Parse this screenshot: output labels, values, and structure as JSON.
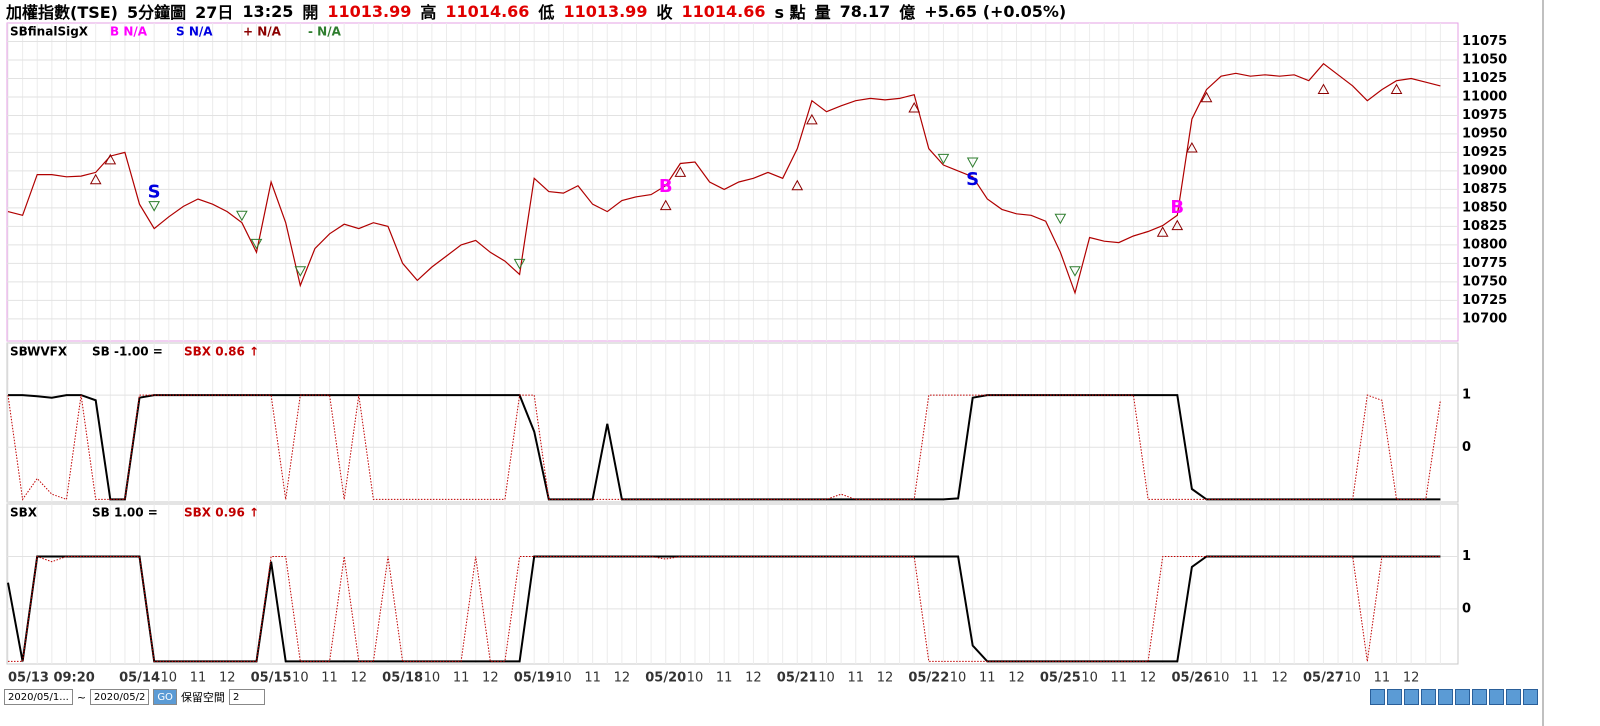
{
  "header": [
    {
      "text": "加權指數(TSE)",
      "color": "#000000"
    },
    {
      "text": "5分鐘圖",
      "color": "#000000"
    },
    {
      "text": "27日",
      "color": "#000000"
    },
    {
      "text": "13:25",
      "color": "#000000"
    },
    {
      "text": "開",
      "color": "#000000"
    },
    {
      "text": "11013.99",
      "color": "#e00000"
    },
    {
      "text": "高",
      "color": "#000000"
    },
    {
      "text": "11014.66",
      "color": "#e00000"
    },
    {
      "text": "低",
      "color": "#000000"
    },
    {
      "text": "11013.99",
      "color": "#e00000"
    },
    {
      "text": "收",
      "color": "#000000"
    },
    {
      "text": "11014.66",
      "color": "#e00000"
    },
    {
      "text": "s 點",
      "color": "#000000"
    },
    {
      "text": "量",
      "color": "#000000"
    },
    {
      "text": "78.17",
      "color": "#000000"
    },
    {
      "text": "億",
      "color": "#000000"
    },
    {
      "text": "+5.65 (+0.05%)",
      "color": "#000000"
    }
  ],
  "toolbar": {
    "from": "2020/05/1...",
    "sep": "~",
    "to": "2020/05/2",
    "space_label": "保留空間",
    "space_value": "2"
  },
  "chart_data": [
    {
      "type": "line",
      "title": "SBfinalSigX",
      "ylim": [
        10670,
        11100
      ],
      "yticks": [
        10700,
        10725,
        10750,
        10775,
        10800,
        10825,
        10850,
        10875,
        10900,
        10925,
        10950,
        10975,
        11000,
        11025,
        11050,
        11075
      ],
      "grid": true,
      "series": [
        {
          "color": "#b00000",
          "values": [
            10845,
            10840,
            10895,
            10895,
            10892,
            10893,
            10898,
            10920,
            10925,
            10855,
            10822,
            10838,
            10852,
            10862,
            10855,
            10845,
            10830,
            10790,
            10885,
            10830,
            10745,
            10795,
            10815,
            10828,
            10822,
            10830,
            10825,
            10775,
            10752,
            10770,
            10785,
            10800,
            10806,
            10790,
            10778,
            10760,
            10890,
            10872,
            10870,
            10880,
            10855,
            10845,
            10860,
            10865,
            10868,
            10880,
            10910,
            10912,
            10885,
            10875,
            10885,
            10890,
            10898,
            10890,
            10930,
            10995,
            10980,
            10988,
            10995,
            10998,
            10996,
            10998,
            11003,
            10930,
            10908,
            10900,
            10892,
            10862,
            10848,
            10842,
            10840,
            10832,
            10790,
            10735,
            10810,
            10805,
            10803,
            10812,
            10818,
            10826,
            10840,
            10970,
            11010,
            11028,
            11032,
            11028,
            11030,
            11028,
            11030,
            11022,
            11045,
            11030,
            11015,
            10995,
            11010,
            11022,
            11025,
            11020,
            11015
          ]
        },
        {
          "name": "B N/A",
          "color": "#ff00ff",
          "marker": "B",
          "x": [
            45,
            80
          ],
          "values": [
            10878,
            10850
          ]
        },
        {
          "name": "S N/A",
          "color": "#0000e0",
          "marker": "S",
          "x": [
            10,
            66
          ],
          "values": [
            10871,
            10888
          ]
        },
        {
          "name": "+ N/A",
          "color": "#8b0000",
          "marker": "triangle-up",
          "x": [
            6,
            7,
            45,
            46,
            54,
            55,
            62,
            79,
            80,
            81,
            82,
            90,
            95
          ],
          "values": [
            10888,
            10915,
            10853,
            10898,
            10880,
            10969,
            10985,
            10817,
            10826,
            10931,
            10999,
            11010,
            11010
          ]
        },
        {
          "name": "- N/A",
          "color": "#2e7d2e",
          "marker": "triangle-down",
          "x": [
            10,
            16,
            17,
            20,
            35,
            64,
            66,
            72,
            73
          ],
          "values": [
            10853,
            10840,
            10802,
            10765,
            10775,
            10917,
            10912,
            10836,
            10765
          ]
        }
      ]
    },
    {
      "type": "line",
      "title": "SBWVFX",
      "ylim": [
        -1.05,
        2
      ],
      "yticks": [
        0,
        1
      ],
      "grid": true,
      "series": [
        {
          "name": "SB -1.00 =",
          "color": "#000000",
          "values": [
            1,
            1,
            0.98,
            0.95,
            1,
            1,
            0.9,
            -1,
            -1,
            0.95,
            1,
            1,
            1,
            1,
            1,
            1,
            1,
            1,
            1,
            1,
            1,
            1,
            1,
            1,
            1,
            1,
            1,
            1,
            1,
            1,
            1,
            1,
            1,
            1,
            1,
            1,
            0.3,
            -1,
            -1,
            -1,
            -1,
            0.45,
            -1,
            -1,
            -1,
            -1,
            -1,
            -1,
            -1,
            -1,
            -1,
            -1,
            -1,
            -1,
            -1,
            -1,
            -1,
            -1,
            -1,
            -1,
            -1,
            -1,
            -1,
            -1,
            -1,
            -0.98,
            0.95,
            1,
            1,
            1,
            1,
            1,
            1,
            1,
            1,
            1,
            1,
            1,
            1,
            1,
            1,
            -0.8,
            -1,
            -1,
            -1,
            -1,
            -1,
            -1,
            -1,
            -1,
            -1,
            -1,
            -1,
            -1,
            -1,
            -1,
            -1,
            -1,
            -1
          ]
        },
        {
          "name": "SBX 0.86 ↑",
          "color": "#c00000",
          "dashed": true,
          "values": [
            1,
            -1,
            -0.6,
            -0.9,
            -1,
            1,
            -1,
            -1,
            -1,
            1,
            1,
            1,
            1,
            1,
            1,
            1,
            1,
            1,
            1,
            -1,
            1,
            1,
            1,
            -1,
            1,
            -1,
            -1,
            -1,
            -1,
            -1,
            -1,
            -1,
            -1,
            -1,
            -1,
            1,
            1,
            -1,
            -1,
            -1,
            -1,
            -1,
            -1,
            -1,
            -1,
            -1,
            -1,
            -1,
            -1,
            -1,
            -1,
            -1,
            -1,
            -1,
            -1,
            -1,
            -1,
            -0.9,
            -1,
            -1,
            -1,
            -1,
            -1,
            1,
            1,
            1,
            1,
            1,
            1,
            1,
            1,
            1,
            1,
            1,
            1,
            1,
            1,
            1,
            -1,
            -1,
            -1,
            -1,
            -1,
            -1,
            -1,
            -1,
            -1,
            -1,
            -1,
            -1,
            -1,
            -1,
            -1,
            1,
            0.9,
            -1,
            -1,
            -1,
            0.9
          ]
        }
      ]
    },
    {
      "type": "line",
      "title": "SBX",
      "ylim": [
        -1.05,
        2
      ],
      "yticks": [
        0,
        1
      ],
      "grid": true,
      "categories": [
        "05/13 09:20",
        null,
        null,
        null,
        null,
        null,
        null,
        null,
        null,
        "05/14",
        null,
        "10",
        null,
        "11",
        null,
        "12",
        null,
        null,
        "05/15",
        null,
        "10",
        null,
        "11",
        null,
        "12",
        null,
        null,
        "05/18",
        null,
        "10",
        null,
        "11",
        null,
        "12",
        null,
        null,
        "05/19",
        null,
        "10",
        null,
        "11",
        null,
        "12",
        null,
        null,
        "05/20",
        null,
        "10",
        null,
        "11",
        null,
        "12",
        null,
        null,
        "05/21",
        null,
        "10",
        null,
        "11",
        null,
        "12",
        null,
        null,
        "05/22",
        null,
        "10",
        null,
        "11",
        null,
        "12",
        null,
        null,
        "05/25",
        null,
        "10",
        null,
        "11",
        null,
        "12",
        null,
        null,
        "05/26",
        null,
        "10",
        null,
        "11",
        null,
        "12",
        null,
        null,
        "05/27",
        null,
        "10",
        null,
        "11",
        null,
        "12",
        null,
        null
      ],
      "series": [
        {
          "name": "SB 1.00 =",
          "color": "#000000",
          "values": [
            0.5,
            -1,
            1,
            1,
            1,
            1,
            1,
            1,
            1,
            1,
            -1,
            -1,
            -1,
            -1,
            -1,
            -1,
            -1,
            -1,
            0.9,
            -1,
            -1,
            -1,
            -1,
            -1,
            -1,
            -1,
            -1,
            -1,
            -1,
            -1,
            -1,
            -1,
            -1,
            -1,
            -1,
            -1,
            1,
            1,
            1,
            1,
            1,
            1,
            1,
            1,
            1,
            1,
            1,
            1,
            1,
            1,
            1,
            1,
            1,
            1,
            1,
            1,
            1,
            1,
            1,
            1,
            1,
            1,
            1,
            1,
            1,
            1,
            -0.7,
            -1,
            -1,
            -1,
            -1,
            -1,
            -1,
            -1,
            -1,
            -1,
            -1,
            -1,
            -1,
            -1,
            -1,
            0.8,
            1,
            1,
            1,
            1,
            1,
            1,
            1,
            1,
            1,
            1,
            1,
            1,
            1,
            1,
            1,
            1,
            1
          ]
        },
        {
          "name": "SBX 0.96 ↑",
          "color": "#c00000",
          "dashed": true,
          "values": [
            -1,
            -1,
            1,
            0.9,
            1,
            1,
            1,
            1,
            1,
            1,
            -1,
            -1,
            -1,
            -1,
            -1,
            -1,
            -1,
            -1,
            1,
            1,
            -1,
            -1,
            -1,
            1,
            -1,
            -1,
            1,
            -1,
            -1,
            -1,
            -1,
            -1,
            1,
            -1,
            -1,
            1,
            1,
            1,
            1,
            1,
            1,
            1,
            1,
            1,
            1,
            0.95,
            1,
            1,
            1,
            1,
            1,
            1,
            1,
            1,
            1,
            1,
            1,
            1,
            1,
            1,
            1,
            1,
            1,
            -1,
            -1,
            -1,
            -1,
            -1,
            -1,
            -1,
            -1,
            -1,
            -1,
            -1,
            -1,
            -1,
            -1,
            -1,
            -1,
            1,
            1,
            1,
            1,
            1,
            1,
            1,
            1,
            1,
            1,
            1,
            1,
            1,
            1,
            -1,
            1,
            1,
            1,
            1,
            1
          ]
        }
      ]
    }
  ]
}
